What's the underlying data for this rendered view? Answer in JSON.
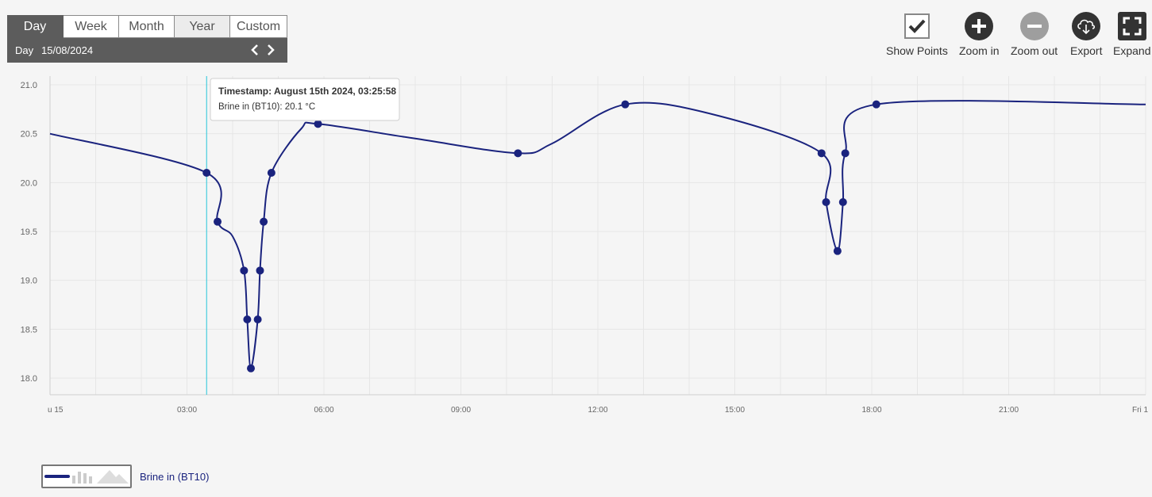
{
  "period_tabs": [
    "Day",
    "Week",
    "Month",
    "Year",
    "Custom"
  ],
  "active_tab": "Day",
  "date_nav": {
    "label": "Day",
    "value": "15/08/2024"
  },
  "toolbar": {
    "show_points": "Show Points",
    "zoom_in": "Zoom in",
    "zoom_out": "Zoom out",
    "export": "Export",
    "expand": "Expand"
  },
  "tooltip": {
    "timestamp": "Timestamp: August 15th 2024, 03:25:58",
    "value": "Brine in (BT10): 20.1 °C"
  },
  "colors": {
    "series": "#1a237e",
    "cursor": "#26c6da",
    "panel": "#5c5c5c",
    "grid": "#e6e6e6"
  },
  "chart_data": {
    "type": "line",
    "title": "",
    "xlabel": "",
    "ylabel": "",
    "xlim": [
      0,
      24
    ],
    "ylim": [
      17.9,
      21.05
    ],
    "yticks": [
      "18.0",
      "18.5",
      "19.0",
      "19.5",
      "20.0",
      "20.5",
      "21.0"
    ],
    "xticks": [
      {
        "t": 0,
        "label": "u 15"
      },
      {
        "t": 3,
        "label": "03:00"
      },
      {
        "t": 6,
        "label": "06:00"
      },
      {
        "t": 9,
        "label": "09:00"
      },
      {
        "t": 12,
        "label": "12:00"
      },
      {
        "t": 15,
        "label": "15:00"
      },
      {
        "t": 18,
        "label": "18:00"
      },
      {
        "t": 21,
        "label": "21:00"
      },
      {
        "t": 24,
        "label": "Fri 1"
      }
    ],
    "grid": true,
    "cursor_t": 3.43,
    "series": [
      {
        "name": "Brine in (BT10)",
        "unit": "°C",
        "line": [
          [
            0.0,
            20.5
          ],
          [
            3.43,
            20.1
          ],
          [
            3.67,
            19.6
          ],
          [
            4.0,
            19.45
          ],
          [
            4.25,
            19.1
          ],
          [
            4.32,
            18.6
          ],
          [
            4.4,
            18.1
          ],
          [
            4.55,
            18.6
          ],
          [
            4.6,
            19.1
          ],
          [
            4.68,
            19.6
          ],
          [
            4.85,
            20.1
          ],
          [
            5.5,
            20.55
          ],
          [
            5.87,
            20.6
          ],
          [
            8.0,
            20.45
          ],
          [
            10.25,
            20.3
          ],
          [
            11.0,
            20.4
          ],
          [
            12.6,
            20.8
          ],
          [
            14.5,
            20.7
          ],
          [
            16.9,
            20.3
          ],
          [
            17.0,
            19.8
          ],
          [
            17.25,
            19.3
          ],
          [
            17.37,
            19.8
          ],
          [
            17.42,
            20.3
          ],
          [
            18.1,
            20.8
          ],
          [
            24.0,
            20.8
          ]
        ],
        "points": [
          [
            3.43,
            20.1
          ],
          [
            3.67,
            19.6
          ],
          [
            4.25,
            19.1
          ],
          [
            4.32,
            18.6
          ],
          [
            4.4,
            18.1
          ],
          [
            4.55,
            18.6
          ],
          [
            4.6,
            19.1
          ],
          [
            4.68,
            19.6
          ],
          [
            4.85,
            20.1
          ],
          [
            5.87,
            20.6
          ],
          [
            10.25,
            20.3
          ],
          [
            12.6,
            20.8
          ],
          [
            16.9,
            20.3
          ],
          [
            17.0,
            19.8
          ],
          [
            17.25,
            19.3
          ],
          [
            17.37,
            19.8
          ],
          [
            17.42,
            20.3
          ],
          [
            18.1,
            20.8
          ]
        ]
      }
    ]
  }
}
